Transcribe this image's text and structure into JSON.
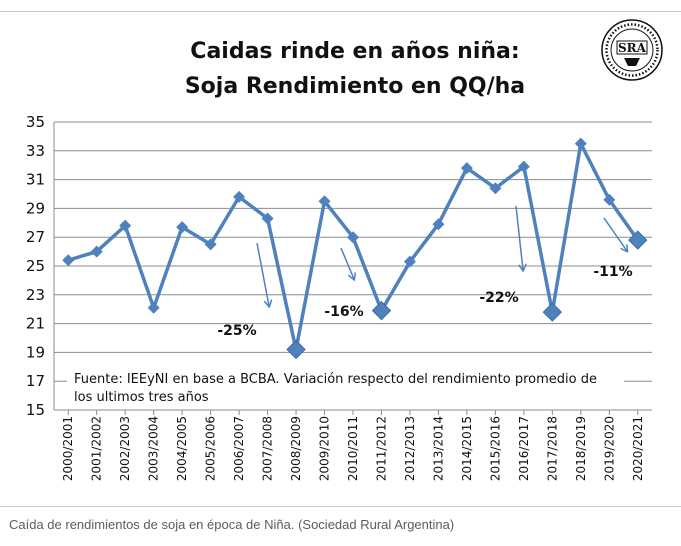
{
  "chart_data": {
    "type": "line",
    "title_lines": [
      "Caidas rinde en años niña:",
      "Soja Rendimiento en QQ/ha"
    ],
    "categories": [
      "2000/2001",
      "2001/2002",
      "2002/2003",
      "2003/2004",
      "2004/2005",
      "2005/2006",
      "2006/2007",
      "2007/2008",
      "2008/2009",
      "2009/2010",
      "2010/2011",
      "2011/2012",
      "2012/2013",
      "2013/2014",
      "2014/2015",
      "2015/2016",
      "2016/2017",
      "2017/2018",
      "2018/2019",
      "2019/2020",
      "2020/2021"
    ],
    "values": [
      25.4,
      26.0,
      27.8,
      22.1,
      27.7,
      26.5,
      29.8,
      28.3,
      19.2,
      29.5,
      27.0,
      21.9,
      25.3,
      27.9,
      31.8,
      30.4,
      31.9,
      21.8,
      33.5,
      29.6,
      26.8
    ],
    "highlighted_categories": [
      "2008/2009",
      "2011/2012",
      "2017/2018",
      "2020/2021"
    ],
    "ylim": [
      15,
      35
    ],
    "yticks": [
      15,
      17,
      19,
      21,
      23,
      25,
      27,
      29,
      31,
      33,
      35
    ],
    "grid": true,
    "line_color": "#4f81bd",
    "annotations": [
      {
        "text": "-25%",
        "category": "2007/2008"
      },
      {
        "text": "-16%",
        "category": "2010/2011"
      },
      {
        "text": "-22%",
        "category": "2016/2017"
      },
      {
        "text": "-11%",
        "category": "2019/2020"
      }
    ],
    "note": [
      "Fuente: IEEyNI en base a BCBA. Variación respecto del rendimiento promedio de",
      "los ultimos tres años"
    ]
  },
  "logo": {
    "text": "SRA",
    "name": "sociedad-rural-seal"
  },
  "caption": "Caída de rendimientos de soja en época de Niña. (Sociedad Rural Argentina)"
}
